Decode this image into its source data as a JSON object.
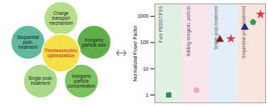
{
  "diagram": {
    "center": {
      "lines": [
        "Thermoelectric",
        "optimization"
      ],
      "color": "#f5e04a",
      "text_color": "#d9402b"
    },
    "nodes": [
      {
        "lines": [
          "Charge",
          "transport",
          "mechanism"
        ],
        "color": "#b5dd8a"
      },
      {
        "lines": [
          "Inorganic",
          "particle size"
        ],
        "color": "#5fae4a"
      },
      {
        "lines": [
          "Inorganic",
          "particle",
          "concentration"
        ],
        "color": "#7dc25c"
      },
      {
        "lines": [
          "Single post-",
          "treatment"
        ],
        "color": "#a9d98a"
      },
      {
        "lines": [
          "Sequential",
          "post-",
          "treatment"
        ],
        "color": "#5fb8a0"
      }
    ]
  },
  "chart_data": {
    "type": "scatter",
    "y_label": "Normalized Power Factor",
    "log": "y",
    "xlim": [
      0,
      4
    ],
    "ylim": [
      0.5,
      3000
    ],
    "yticks": [
      1,
      10,
      100,
      1000
    ],
    "tick_labels": "y",
    "regions": [
      {
        "label": "Pure PEDOT:PSS",
        "x": [
          0,
          1
        ],
        "color": "#e3f1e2"
      },
      {
        "label": "Adding inorganic particle",
        "x": [
          1,
          2
        ],
        "color": "#fbe6ef"
      },
      {
        "label": "Single post-treatment",
        "x": [
          2,
          3
        ],
        "color": "#e2eef8"
      },
      {
        "label": "Sequential post-treatment",
        "x": [
          3,
          4
        ],
        "color": "#fbe3e0"
      }
    ],
    "series": [
      {
        "color": "#2e8b57",
        "marker": "square",
        "x": [
          0.5
        ],
        "values": [
          1
        ]
      },
      {
        "color": "#f2a6c2",
        "marker": "circle",
        "x": [
          1.5
        ],
        "values": [
          1.5
        ]
      },
      {
        "color": "#7b2020",
        "marker": "triangle",
        "x": [
          2.35
        ],
        "values": [
          130
        ]
      },
      {
        "color": "#e23b3b",
        "marker": "star",
        "x": [
          2.75
        ],
        "values": [
          140
        ]
      },
      {
        "color": "#1f2f7a",
        "marker": "triangle",
        "x": [
          3.25
        ],
        "values": [
          380
        ]
      },
      {
        "color": "#2e9e4e",
        "marker": "pentagon",
        "x": [
          3.55
        ],
        "values": [
          600
        ]
      },
      {
        "color": "#e23b3b",
        "marker": "star",
        "x": [
          3.82
        ],
        "values": [
          1200
        ]
      }
    ]
  }
}
